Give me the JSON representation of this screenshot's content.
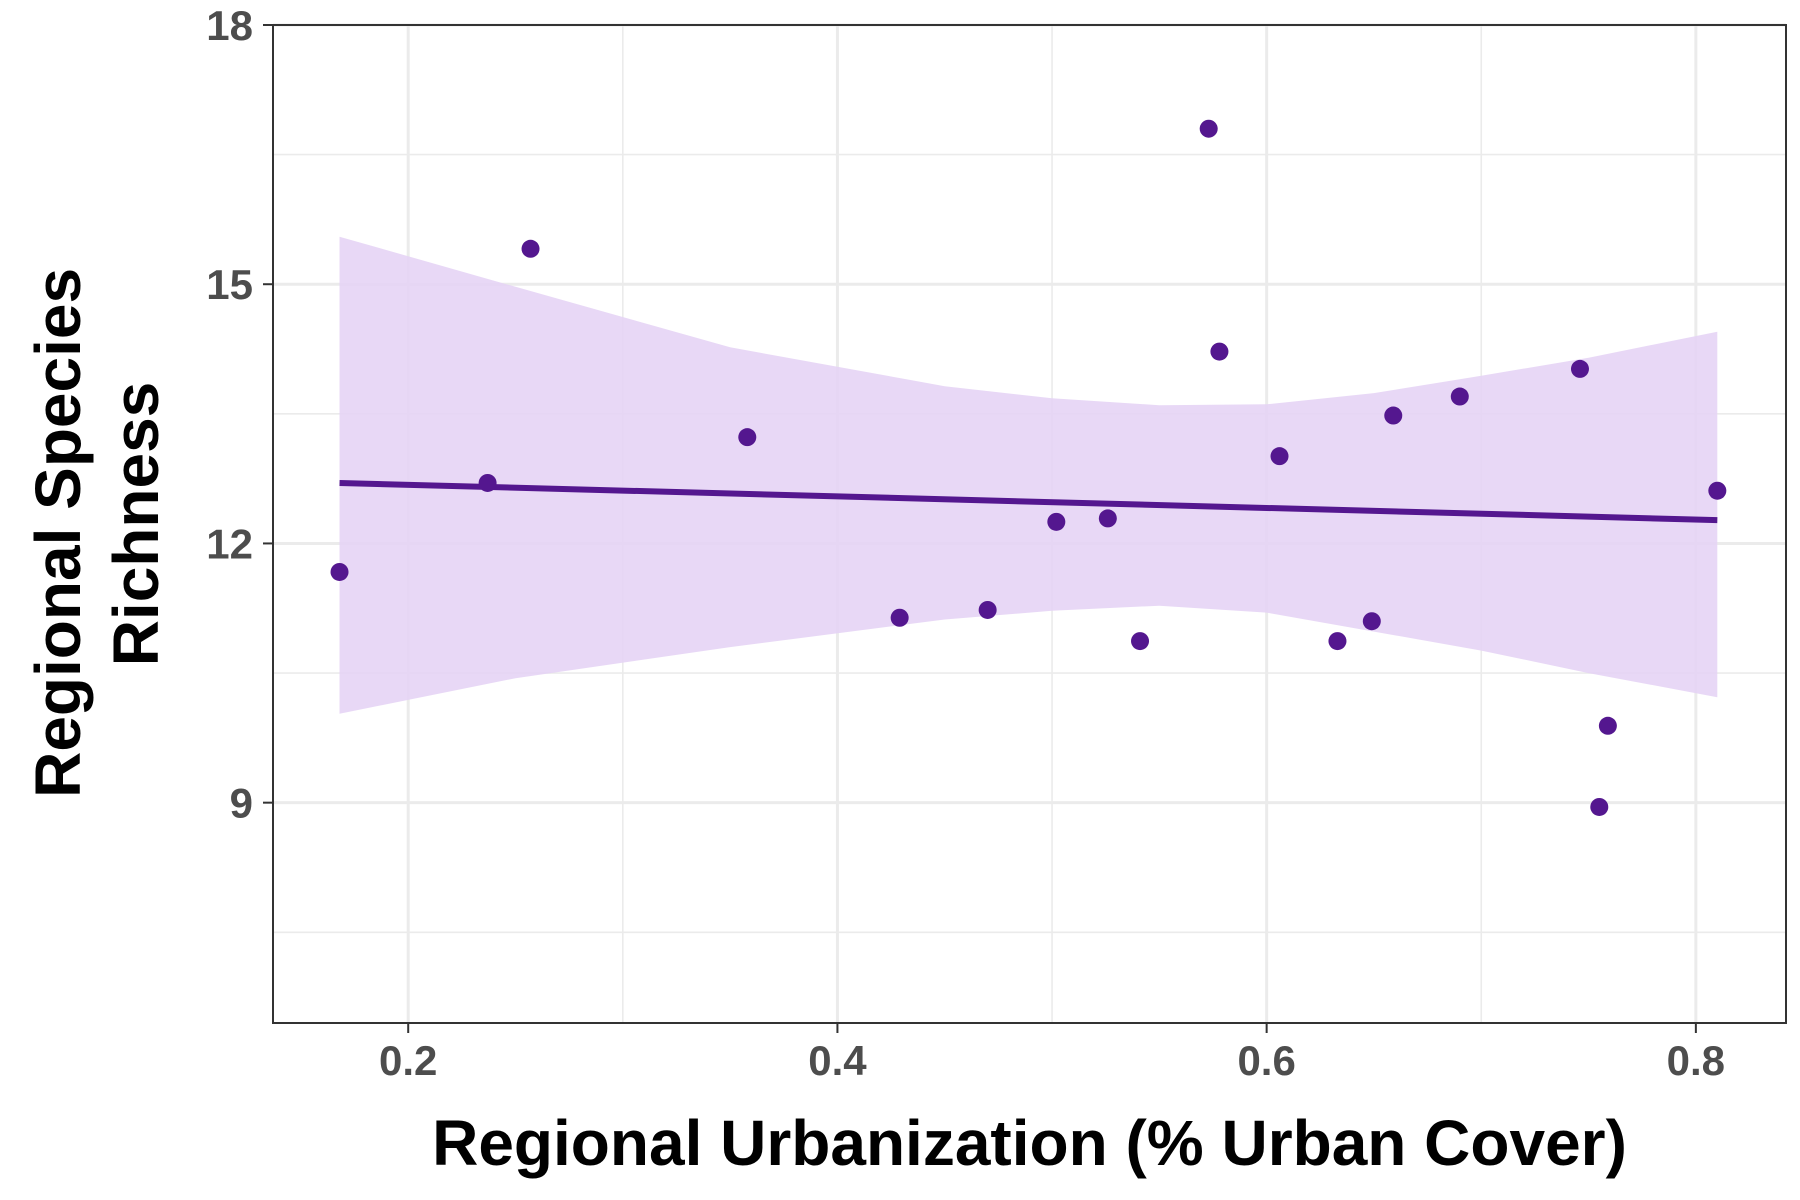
{
  "chart_data": {
    "type": "scatter",
    "title": "",
    "xlabel": "Regional Urbanization (% Urban Cover)",
    "ylabel": [
      "Regional Species",
      "Richness"
    ],
    "xlim": [
      0.137,
      0.842
    ],
    "ylim": [
      6.45,
      18.0
    ],
    "x_ticks": [
      0.2,
      0.4,
      0.6,
      0.8
    ],
    "x_tick_labels": [
      "0.2",
      "0.4",
      "0.6",
      "0.8"
    ],
    "x_minor_ticks": [
      0.3,
      0.5,
      0.7
    ],
    "y_ticks": [
      9,
      12,
      15,
      18
    ],
    "y_tick_labels": [
      "9",
      "12",
      "15",
      "18"
    ],
    "y_minor_ticks": [
      7.5,
      10.5,
      13.5,
      16.5
    ],
    "grid": true,
    "colors": {
      "points": "#54178f",
      "line": "#54178f",
      "band": "#e5d4f5",
      "grid": "#ebebeb",
      "panel_border": "#333333"
    },
    "points": [
      {
        "x": 0.168,
        "y": 11.67
      },
      {
        "x": 0.237,
        "y": 12.7
      },
      {
        "x": 0.257,
        "y": 15.41
      },
      {
        "x": 0.358,
        "y": 13.23
      },
      {
        "x": 0.429,
        "y": 11.14
      },
      {
        "x": 0.47,
        "y": 11.23
      },
      {
        "x": 0.502,
        "y": 12.25
      },
      {
        "x": 0.526,
        "y": 12.29
      },
      {
        "x": 0.541,
        "y": 10.87
      },
      {
        "x": 0.573,
        "y": 16.8
      },
      {
        "x": 0.578,
        "y": 14.22
      },
      {
        "x": 0.606,
        "y": 13.01
      },
      {
        "x": 0.633,
        "y": 10.87
      },
      {
        "x": 0.649,
        "y": 11.1
      },
      {
        "x": 0.659,
        "y": 13.48
      },
      {
        "x": 0.69,
        "y": 13.7
      },
      {
        "x": 0.746,
        "y": 14.02
      },
      {
        "x": 0.755,
        "y": 8.95
      },
      {
        "x": 0.759,
        "y": 9.89
      },
      {
        "x": 0.81,
        "y": 12.61
      }
    ],
    "fit": {
      "x": [
        0.168,
        0.81
      ],
      "y": [
        12.7,
        12.27
      ]
    },
    "ci_band": {
      "x": [
        0.168,
        0.25,
        0.35,
        0.45,
        0.5,
        0.55,
        0.6,
        0.65,
        0.7,
        0.75,
        0.81
      ],
      "upper": [
        15.55,
        14.97,
        14.27,
        13.82,
        13.68,
        13.6,
        13.61,
        13.74,
        13.94,
        14.15,
        14.45
      ],
      "lower": [
        10.03,
        10.44,
        10.8,
        11.12,
        11.22,
        11.28,
        11.2,
        10.98,
        10.76,
        10.5,
        10.22
      ]
    }
  }
}
